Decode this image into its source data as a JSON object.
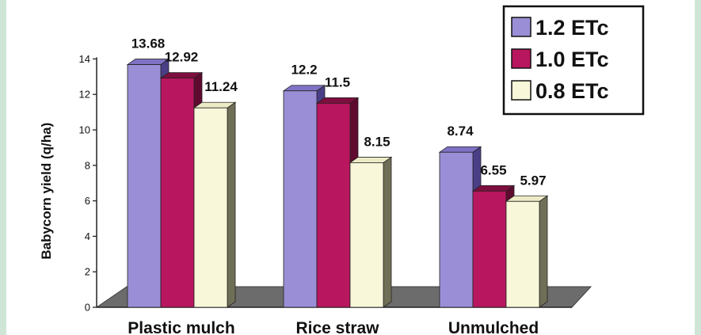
{
  "chart_data": {
    "type": "bar",
    "categories": [
      "Plastic mulch",
      "Rice straw",
      "Unmulched"
    ],
    "series": [
      {
        "name": "1.2 ETc",
        "values": [
          13.68,
          12.2,
          8.74
        ],
        "labels": [
          "13.68",
          "12.2",
          "8.74"
        ],
        "color": "#9a8fd6",
        "side": "#4a3f86",
        "top": "#7f72c4"
      },
      {
        "name": "1.0 ETc",
        "values": [
          12.92,
          11.5,
          6.55
        ],
        "labels": [
          "12.92",
          "11.5",
          "6.55"
        ],
        "color": "#b8165e",
        "side": "#5f0a2e",
        "top": "#7e0e3e"
      },
      {
        "name": "0.8 ETc",
        "values": [
          11.24,
          8.15,
          5.97
        ],
        "labels": [
          "11.24",
          "8.15",
          "5.97"
        ],
        "color": "#f9f7d9",
        "side": "#6f6f57",
        "top": "#ecebc6"
      }
    ],
    "yticks": [
      "0",
      "2",
      "4",
      "6",
      "8",
      "10",
      "12",
      "14"
    ],
    "ylabel": "Babycorn yield (q/ha)",
    "ylim": [
      0,
      14
    ],
    "legend_position": "top-right",
    "grid": false
  }
}
